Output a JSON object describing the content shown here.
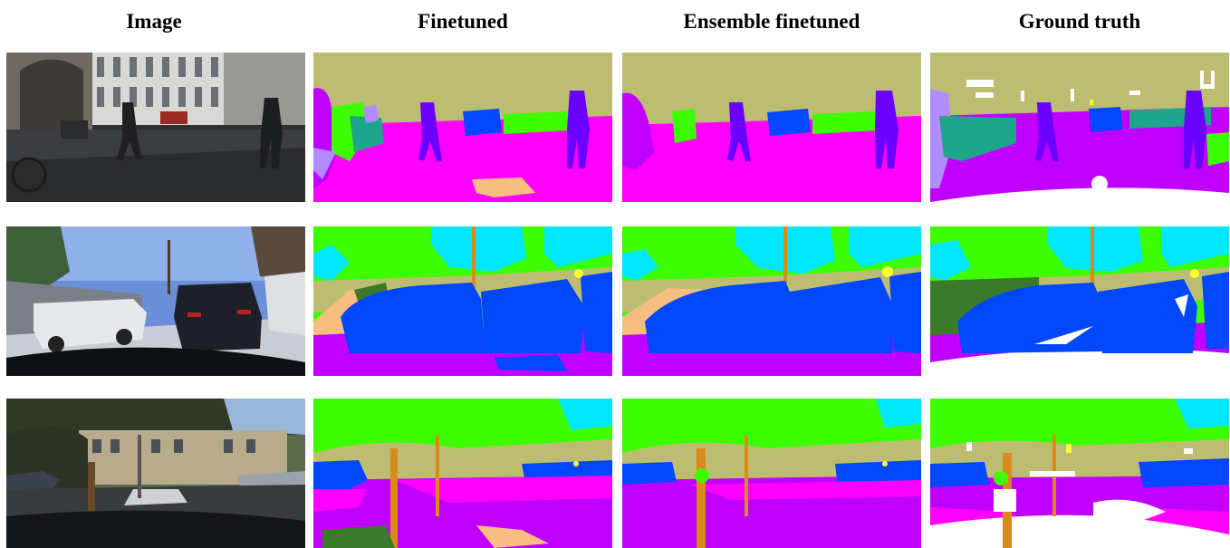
{
  "columns": [
    "Image",
    "Finetuned",
    "Ensemble finetuned",
    "Ground truth"
  ],
  "palette": {
    "sky": "#bdbd72",
    "road": "#ff00ff",
    "sidewalk_violet": "#c000ff",
    "person": "#6a00ff",
    "car": "#0047ff",
    "vegetation": "#3dff00",
    "terrain": "#3b7a2a",
    "building": "#1fa58a",
    "cyan_sky": "#00e7ff",
    "pole": "#d98a1a",
    "sign": "#ffff30",
    "sand": "#f6be80",
    "lilac": "#b08cff",
    "void": "#ffffff"
  }
}
